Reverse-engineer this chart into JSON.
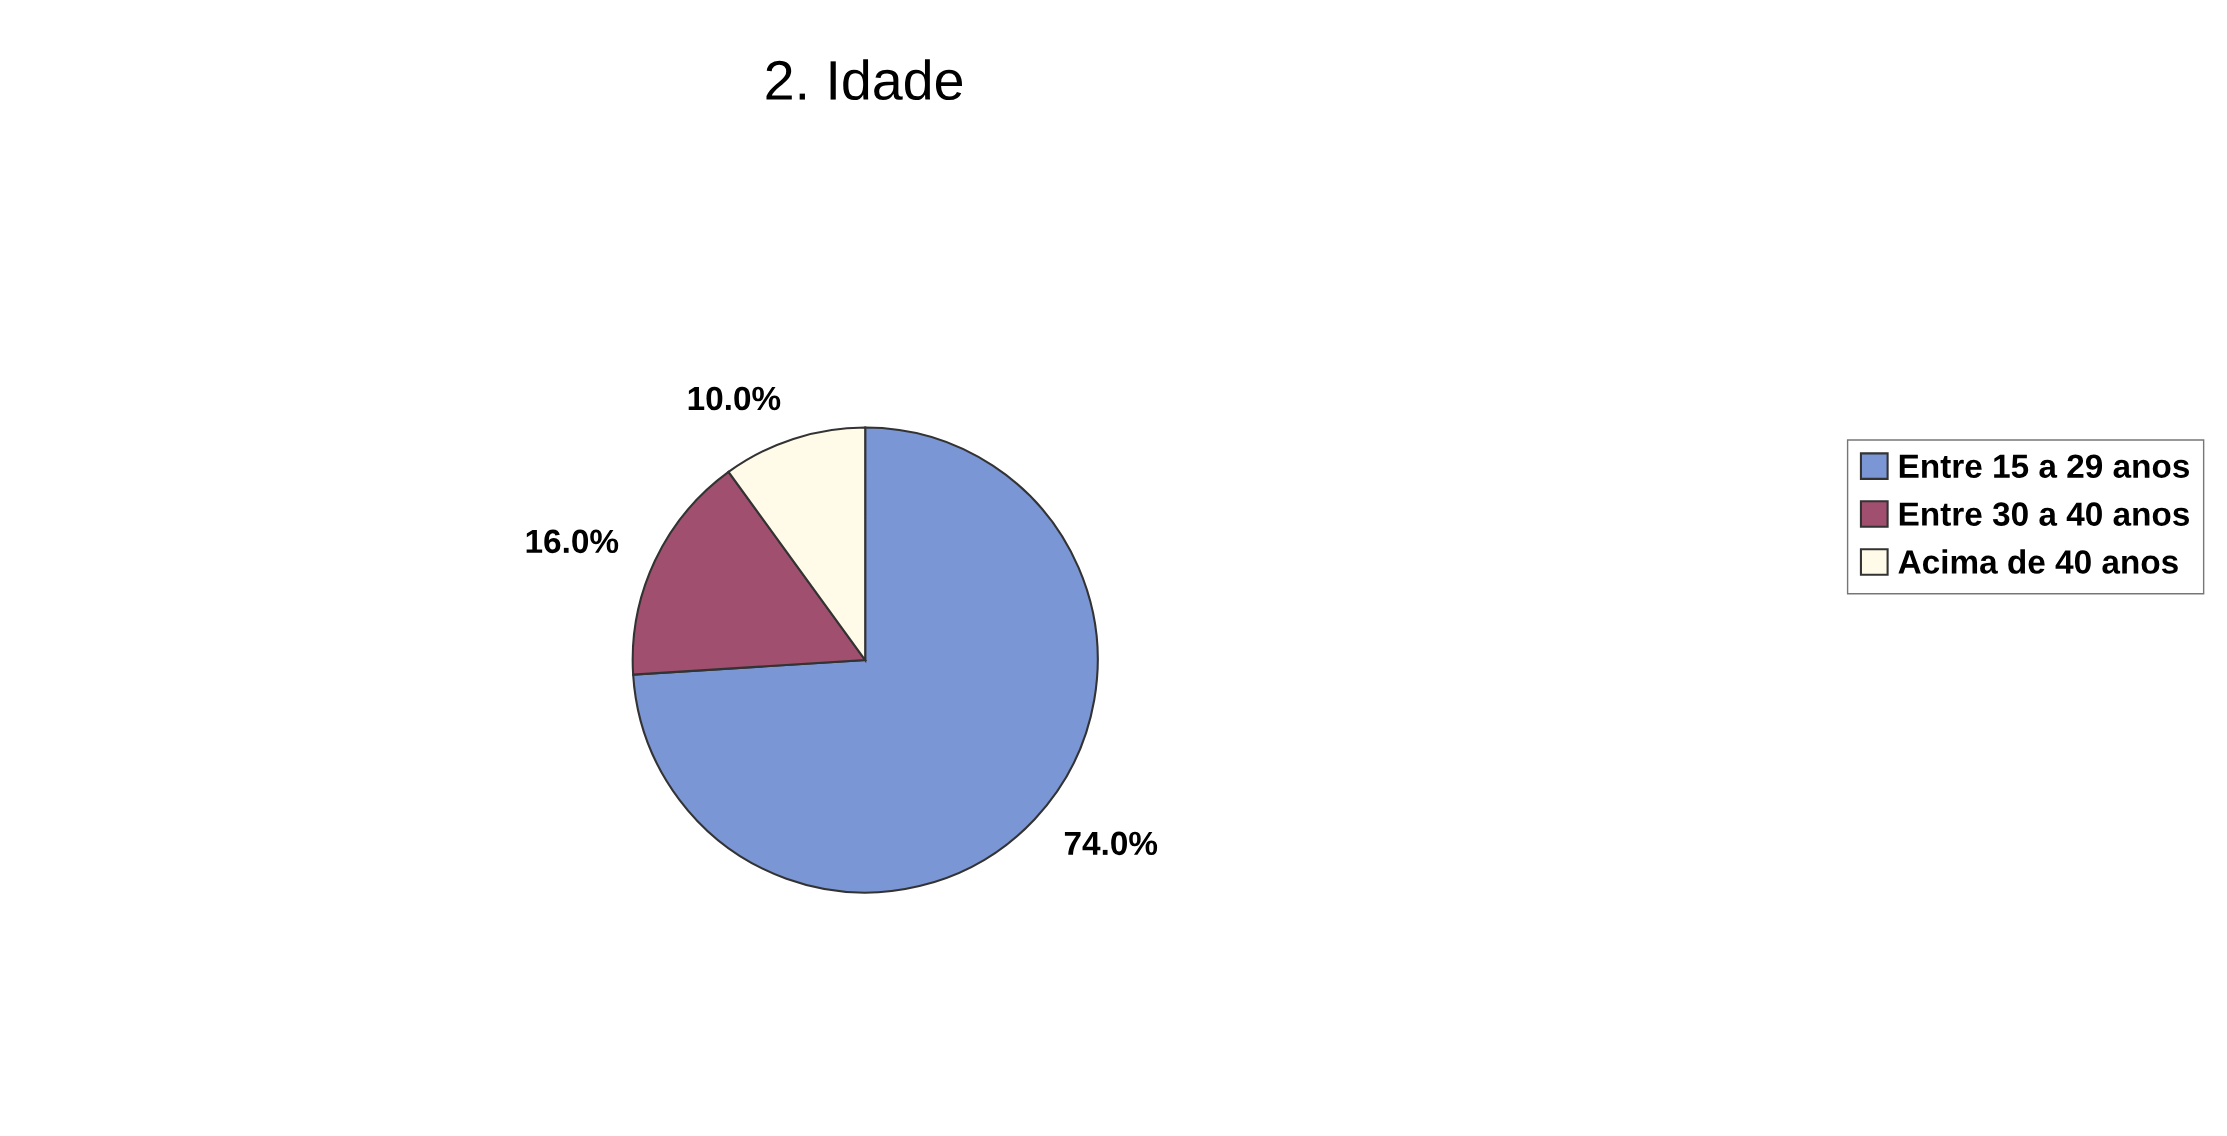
{
  "chart_data": {
    "type": "pie",
    "title": "2. Idade",
    "categories": [
      "Entre 15 a 29 anos",
      "Entre 30 a 40 anos",
      "Acima de 40 anos"
    ],
    "values": [
      74.0,
      16.0,
      10.0
    ],
    "colors": [
      "#7b96d4",
      "#a0506e",
      "#fffbe8"
    ],
    "value_labels": [
      "74.0%",
      "16.0%",
      "10.0%"
    ],
    "legend": "right"
  }
}
